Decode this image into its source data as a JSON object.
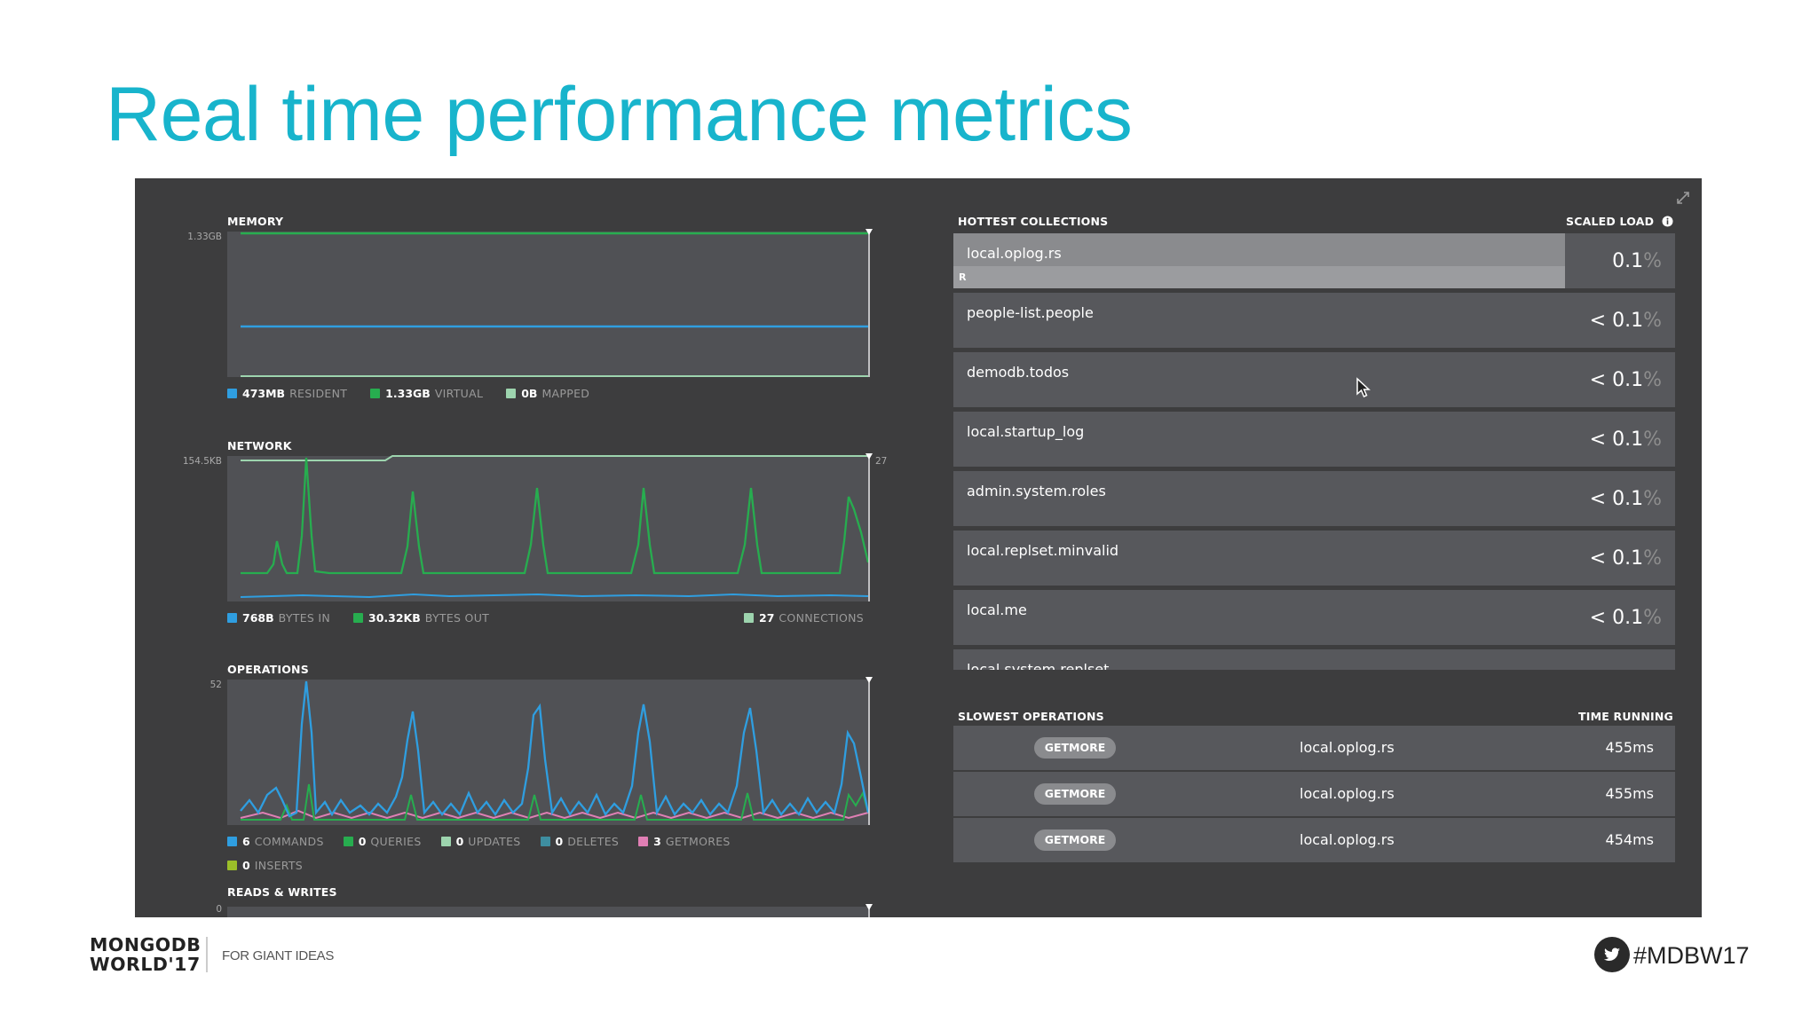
{
  "slide_title": "Real time performance metrics",
  "memory": {
    "label": "MEMORY",
    "y_max": "1.33GB",
    "legend": [
      {
        "value": "473MB",
        "label": "RESIDENT",
        "color": "#2f9ee0"
      },
      {
        "value": "1.33GB",
        "label": "VIRTUAL",
        "color": "#27ad4f"
      },
      {
        "value": "0B",
        "label": "MAPPED",
        "color": "#9dd4ae"
      }
    ]
  },
  "network": {
    "label": "NETWORK",
    "y_max": "154.5KB",
    "y_right_max": "27",
    "legend": [
      {
        "value": "768B",
        "label": "BYTES IN",
        "color": "#2f9ee0"
      },
      {
        "value": "30.32KB",
        "label": "BYTES OUT",
        "color": "#27ad4f"
      }
    ],
    "legend_right": {
      "value": "27",
      "label": "CONNECTIONS",
      "color": "#9dd4ae"
    }
  },
  "operations": {
    "label": "OPERATIONS",
    "y_max": "52",
    "legend": [
      {
        "value": "6",
        "label": "COMMANDS",
        "color": "#2f9ee0"
      },
      {
        "value": "0",
        "label": "QUERIES",
        "color": "#27ad4f"
      },
      {
        "value": "0",
        "label": "UPDATES",
        "color": "#9dd4ae"
      },
      {
        "value": "0",
        "label": "DELETES",
        "color": "#3e8ea0"
      },
      {
        "value": "3",
        "label": "GETMORES",
        "color": "#e07fb4"
      }
    ],
    "legend_row2": [
      {
        "value": "0",
        "label": "INSERTS",
        "color": "#9bbf29"
      }
    ]
  },
  "reads_writes": {
    "label": "READS & WRITES",
    "y_max": "0"
  },
  "hottest_collections": {
    "label": "HOTTEST COLLECTIONS",
    "column_label": "SCALED LOAD",
    "info_icon": "info-icon",
    "rows": [
      {
        "name": "local.oplog.rs",
        "prefix": "",
        "value": "0.1",
        "unit": "%",
        "tag": "R",
        "load_fraction": 0.85
      },
      {
        "name": "people-list.people",
        "prefix": "< ",
        "value": "0.1",
        "unit": "%"
      },
      {
        "name": "demodb.todos",
        "prefix": "< ",
        "value": "0.1",
        "unit": "%"
      },
      {
        "name": "local.startup_log",
        "prefix": "< ",
        "value": "0.1",
        "unit": "%"
      },
      {
        "name": "admin.system.roles",
        "prefix": "< ",
        "value": "0.1",
        "unit": "%"
      },
      {
        "name": "local.replset.minvalid",
        "prefix": "< ",
        "value": "0.1",
        "unit": "%"
      },
      {
        "name": "local.me",
        "prefix": "< ",
        "value": "0.1",
        "unit": "%"
      },
      {
        "name": "local.system.replset",
        "prefix": "",
        "value": "",
        "unit": ""
      }
    ]
  },
  "slowest_operations": {
    "label": "SLOWEST OPERATIONS",
    "column_label": "TIME RUNNING",
    "rows": [
      {
        "op": "GETMORE",
        "ns": "local.oplog.rs",
        "time": "455ms"
      },
      {
        "op": "GETMORE",
        "ns": "local.oplog.rs",
        "time": "455ms"
      },
      {
        "op": "GETMORE",
        "ns": "local.oplog.rs",
        "time": "454ms"
      }
    ]
  },
  "footer": {
    "logo_line1": "MONGODB",
    "logo_line2": "WORLD'17",
    "tagline": "FOR GIANT IDEAS",
    "hashtag": "#MDBW17",
    "twitter_icon": "twitter-icon"
  }
}
